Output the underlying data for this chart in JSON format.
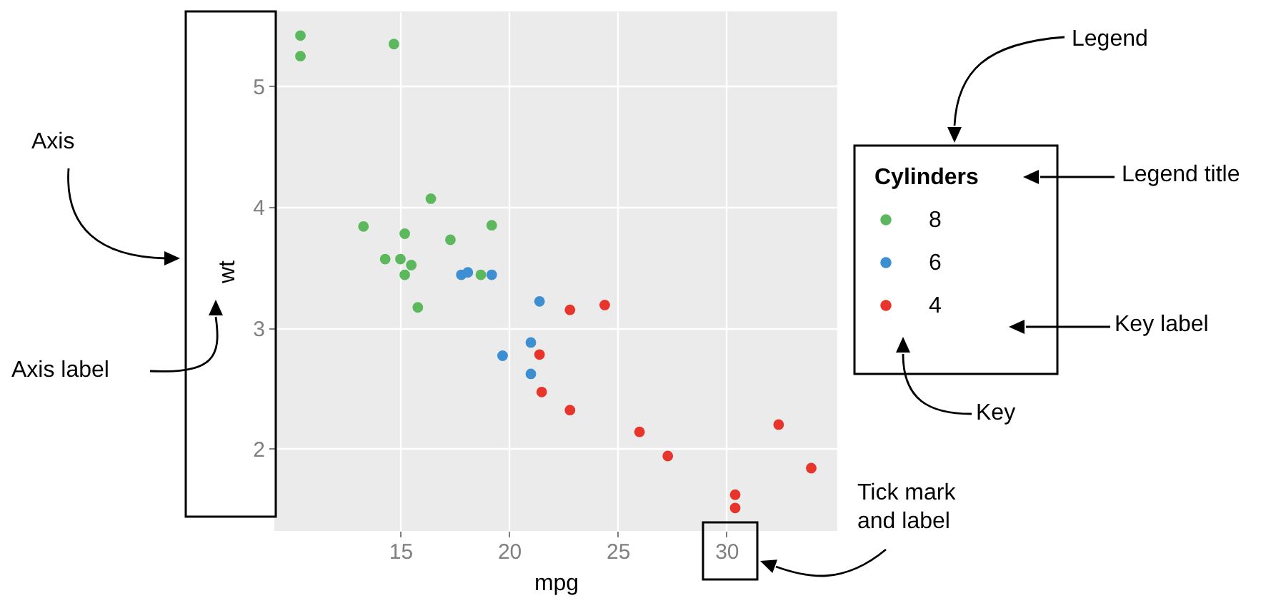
{
  "chart_data": {
    "type": "scatter",
    "xlabel": "mpg",
    "ylabel": "wt",
    "legend_title": "Cylinders",
    "legend": "right",
    "grid": true,
    "marker": "circle",
    "xlim": [
      9.2,
      35.1
    ],
    "ylim": [
      1.32,
      5.62
    ],
    "xticks": [
      15,
      20,
      25,
      30
    ],
    "yticks": [
      2,
      3,
      4,
      5
    ],
    "series": [
      {
        "name": "8",
        "color": "#5cb85c",
        "x": [
          18.7,
          14.3,
          16.4,
          17.3,
          15.2,
          10.4,
          10.4,
          14.7,
          15.5,
          15.2,
          13.3,
          19.2,
          15.8,
          15.0
        ],
        "values": [
          3.44,
          3.57,
          4.07,
          3.73,
          3.78,
          5.25,
          5.42,
          5.35,
          3.52,
          3.44,
          3.84,
          3.85,
          3.17,
          3.57
        ]
      },
      {
        "name": "6",
        "color": "#3d8fd1",
        "x": [
          21.0,
          21.0,
          21.4,
          18.1,
          19.2,
          17.8,
          19.7
        ],
        "values": [
          2.62,
          2.88,
          3.22,
          3.46,
          3.44,
          3.44,
          2.77
        ]
      },
      {
        "name": "4",
        "color": "#e8352b",
        "x": [
          22.8,
          24.4,
          22.8,
          32.4,
          30.4,
          33.9,
          21.5,
          27.3,
          26.0,
          30.4,
          21.4
        ],
        "values": [
          2.32,
          3.19,
          3.15,
          2.2,
          1.62,
          1.84,
          2.47,
          1.94,
          2.14,
          1.51,
          2.78
        ]
      }
    ],
    "annotations": [
      "Axis",
      "Axis label",
      "Legend",
      "Legend title",
      "Key label",
      "Key",
      "Tick mark\nand label"
    ]
  }
}
